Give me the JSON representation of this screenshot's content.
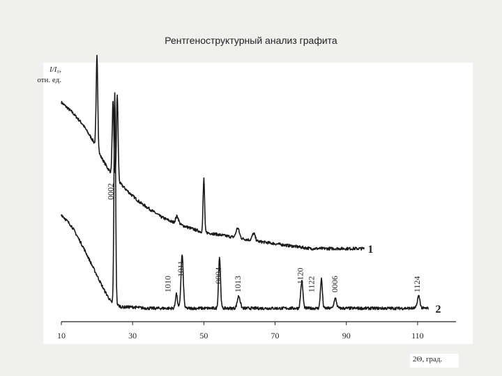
{
  "title": "Рентгеноструктурный анализ графита",
  "chart_data": {
    "type": "line",
    "ylabel_main": "I/I₀,",
    "ylabel_unit": "отн. ед.",
    "xlabel": "2Θ, град.",
    "xlim": [
      10,
      120
    ],
    "x_ticks": [
      10,
      30,
      50,
      70,
      90,
      110
    ],
    "x_tick_labels": [
      "10",
      "30",
      "50",
      "70",
      "90",
      "110"
    ],
    "grid": false,
    "series": [
      {
        "name": "1",
        "x": [
          10,
          13,
          16,
          19,
          21,
          23,
          25,
          27,
          29,
          32,
          35,
          38,
          41,
          45,
          49,
          53,
          57,
          61,
          65,
          70,
          75,
          80,
          85,
          90,
          95
        ],
        "y": [
          0.9,
          0.86,
          0.81,
          0.74,
          0.68,
          0.63,
          0.59,
          0.56,
          0.53,
          0.49,
          0.46,
          0.43,
          0.41,
          0.39,
          0.37,
          0.36,
          0.35,
          0.34,
          0.33,
          0.32,
          0.31,
          0.3,
          0.3,
          0.3,
          0.3
        ],
        "peaks": [
          {
            "x": 20.0,
            "height": 0.38,
            "width": 0.5
          },
          {
            "x": 24.5,
            "height": 0.3,
            "width": 0.5
          },
          {
            "x": 25.7,
            "height": 0.35,
            "width": 0.5
          },
          {
            "x": 42.5,
            "height": 0.03,
            "width": 0.9
          },
          {
            "x": 50.0,
            "height": 0.22,
            "width": 0.45
          },
          {
            "x": 59.5,
            "height": 0.04,
            "width": 1.0
          },
          {
            "x": 64.0,
            "height": 0.03,
            "width": 0.9
          }
        ]
      },
      {
        "name": "2",
        "x": [
          10,
          13,
          16,
          19,
          22,
          24,
          27,
          30,
          34,
          40,
          50,
          60,
          70,
          80,
          90,
          100,
          110,
          113
        ],
        "y": [
          0.44,
          0.39,
          0.31,
          0.22,
          0.13,
          0.08,
          0.06,
          0.06,
          0.055,
          0.055,
          0.055,
          0.055,
          0.055,
          0.055,
          0.055,
          0.055,
          0.055,
          0.055
        ],
        "peaks": [
          {
            "x": 25.0,
            "height": 0.87,
            "width": 0.5
          },
          {
            "x": 42.3,
            "height": 0.06,
            "width": 0.6
          },
          {
            "x": 43.9,
            "height": 0.22,
            "width": 0.7
          },
          {
            "x": 54.4,
            "height": 0.21,
            "width": 0.6
          },
          {
            "x": 59.8,
            "height": 0.05,
            "width": 0.9
          },
          {
            "x": 77.5,
            "height": 0.11,
            "width": 0.7
          },
          {
            "x": 83.0,
            "height": 0.12,
            "width": 0.6
          },
          {
            "x": 86.9,
            "height": 0.04,
            "width": 0.8
          },
          {
            "x": 110.3,
            "height": 0.05,
            "width": 0.8
          }
        ]
      }
    ],
    "curve_labels": [
      {
        "text": "1",
        "series": "1",
        "x": 96
      },
      {
        "text": "2",
        "series": "2",
        "x": 115
      }
    ],
    "peak_labels": [
      {
        "text": "0002",
        "x": 24.6
      },
      {
        "text": "1010",
        "x": 40.6
      },
      {
        "text": "1011",
        "x": 44.3
      },
      {
        "text": "0004",
        "x": 54.8
      },
      {
        "text": "1013",
        "x": 60.3
      },
      {
        "text": "1120",
        "x": 77.8
      },
      {
        "text": "1122",
        "x": 81.0
      },
      {
        "text": "0006",
        "x": 87.5
      },
      {
        "text": "1124",
        "x": 110.6
      }
    ]
  }
}
